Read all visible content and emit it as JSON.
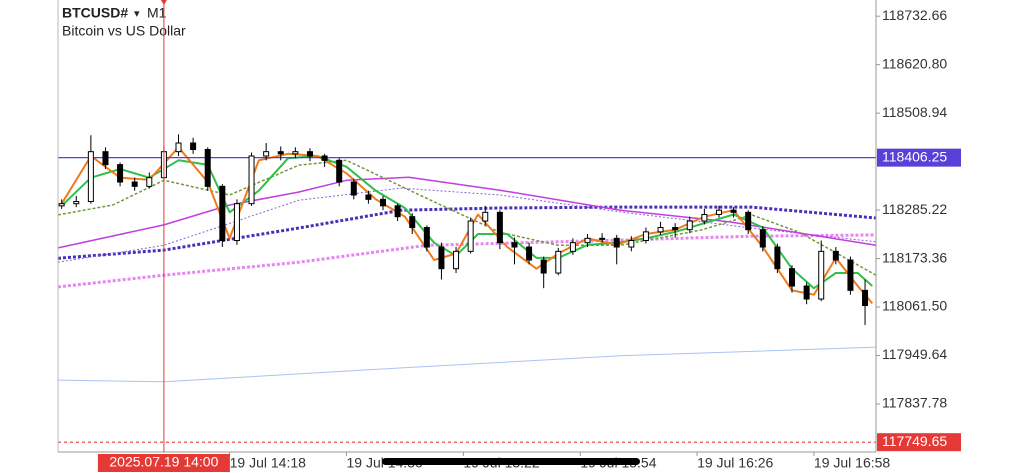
{
  "chart_data": {
    "type": "candlestick",
    "title": "BTCUSD#",
    "timeframe": "M1",
    "subtitle": "Bitcoin vs US Dollar",
    "up_color": "#ffffff",
    "down_color": "#000000",
    "x": [
      "13:32",
      "13:36",
      "13:40",
      "13:44",
      "13:48",
      "13:52",
      "13:56",
      "14:00",
      "14:04",
      "14:08",
      "14:12",
      "14:16",
      "14:20",
      "14:24",
      "14:28",
      "14:32",
      "14:36",
      "14:40",
      "14:44",
      "14:48",
      "14:52",
      "14:56",
      "15:00",
      "15:04",
      "15:08",
      "15:12",
      "15:16",
      "15:20",
      "15:24",
      "15:28",
      "15:32",
      "15:36",
      "15:40",
      "15:44",
      "15:48",
      "15:52",
      "15:56",
      "16:00",
      "16:04",
      "16:08",
      "16:12",
      "16:16",
      "16:20",
      "16:24",
      "16:28",
      "16:32",
      "16:36",
      "16:40",
      "16:44",
      "16:48",
      "16:52",
      "16:56",
      "17:00",
      "17:04",
      "17:08",
      "17:12"
    ],
    "open": [
      118295,
      118300,
      118305,
      118420,
      118390,
      118350,
      118340,
      118360,
      118420,
      118440,
      118425,
      118340,
      118215,
      118300,
      118410,
      118420,
      118415,
      118420,
      118410,
      118400,
      118350,
      118320,
      118310,
      118295,
      118270,
      118245,
      118200,
      118150,
      118190,
      118260,
      118280,
      118210,
      118200,
      118170,
      118140,
      118190,
      118210,
      118220,
      118220,
      118200,
      118215,
      118235,
      118245,
      118240,
      118260,
      118275,
      118285,
      118280,
      118240,
      118200,
      118150,
      118110,
      118080,
      118190,
      118170,
      118100
    ],
    "high": [
      118310,
      118318,
      118458,
      118430,
      118395,
      118360,
      118372,
      118432,
      118460,
      118452,
      118430,
      118345,
      118310,
      118418,
      118440,
      118432,
      118430,
      118428,
      118415,
      118405,
      118358,
      118330,
      118318,
      118300,
      118278,
      118250,
      118210,
      118200,
      118268,
      118295,
      118285,
      118222,
      118210,
      118178,
      118198,
      118220,
      118230,
      118232,
      118228,
      118225,
      118245,
      118258,
      118255,
      118270,
      118288,
      118295,
      118292,
      118285,
      118248,
      118208,
      118158,
      118118,
      118215,
      118200,
      118178,
      118125
    ],
    "low": [
      118288,
      118292,
      118300,
      118380,
      118340,
      118330,
      118335,
      118355,
      118410,
      118415,
      118330,
      118200,
      118205,
      118295,
      118400,
      118400,
      118405,
      118398,
      118385,
      118340,
      118310,
      118300,
      118285,
      118260,
      118230,
      118190,
      118125,
      118140,
      118185,
      118250,
      118195,
      118160,
      118160,
      118105,
      118135,
      118182,
      118200,
      118210,
      118160,
      118190,
      118208,
      118228,
      118222,
      118232,
      118252,
      118268,
      118268,
      118230,
      118190,
      118140,
      118095,
      118068,
      118075,
      118160,
      118090,
      118020
    ],
    "close": [
      118300,
      118305,
      118420,
      118390,
      118350,
      118340,
      118360,
      118420,
      118440,
      118425,
      118340,
      118215,
      118300,
      118410,
      118420,
      118415,
      118420,
      118410,
      118400,
      118350,
      118320,
      118310,
      118295,
      118270,
      118245,
      118200,
      118150,
      118190,
      118260,
      118280,
      118210,
      118200,
      118170,
      118140,
      118190,
      118210,
      118220,
      118220,
      118200,
      118215,
      118235,
      118245,
      118240,
      118260,
      118275,
      118285,
      118280,
      118240,
      118200,
      118150,
      118110,
      118080,
      118190,
      118170,
      118100,
      118065
    ],
    "lines": [
      {
        "color": "#a9c4f5",
        "width": 1,
        "dash": "none",
        "x": [
          "13:31",
          "14:00",
          "15:05",
          "16:05",
          "17:15"
        ],
        "values": [
          117893,
          117889,
          117921,
          117949,
          117969
        ]
      },
      {
        "color": "#e985f2",
        "width": 3,
        "dash": "3 2",
        "x": [
          "13:31",
          "14:00",
          "14:37",
          "15:12",
          "16:05",
          "16:41",
          "17:15"
        ],
        "values": [
          118108,
          118135,
          118165,
          118204,
          118216,
          118225,
          118228
        ]
      },
      {
        "color": "#4b2fb8",
        "width": 3,
        "dash": "3 2",
        "x": [
          "13:31",
          "14:00",
          "14:37",
          "15:05",
          "15:32",
          "16:05",
          "16:41",
          "17:15"
        ],
        "values": [
          118174,
          118193,
          118244,
          118285,
          118290,
          118292,
          118292,
          118267
        ]
      },
      {
        "color": "#8a63d8",
        "width": 1,
        "dash": "2 2",
        "x": [
          "13:31",
          "14:00",
          "14:37",
          "15:05",
          "15:32",
          "16:05",
          "16:41",
          "17:15"
        ],
        "values": [
          118165,
          118204,
          118308,
          118336,
          118320,
          118281,
          118244,
          118212
        ]
      },
      {
        "color": "#c23ee0",
        "width": 1.5,
        "dash": "none",
        "x": [
          "13:31",
          "14:00",
          "14:18",
          "14:37",
          "14:50",
          "15:07",
          "15:32",
          "16:05",
          "16:35",
          "17:15"
        ],
        "values": [
          118198,
          118251,
          118297,
          118327,
          118354,
          118361,
          118331,
          118285,
          118258,
          118204
        ]
      },
      {
        "color": "#6f9a3a",
        "width": 1.5,
        "dash": "3 2",
        "x": [
          "13:31",
          "13:46",
          "14:00",
          "14:18",
          "14:37",
          "14:50",
          "15:10",
          "15:32",
          "15:48",
          "16:05",
          "16:27",
          "16:41",
          "16:54",
          "17:15"
        ],
        "values": [
          118274,
          118297,
          118354,
          118320,
          118389,
          118400,
          118320,
          118234,
          118204,
          118204,
          118239,
          118274,
          118234,
          118135
        ]
      },
      {
        "color": "#2fbf4a",
        "width": 2,
        "dash": "none",
        "x": [
          "13:32",
          "13:40",
          "13:48",
          "13:56",
          "14:04",
          "14:12",
          "14:18",
          "14:26",
          "14:34",
          "14:42",
          "14:50",
          "14:58",
          "15:06",
          "15:14",
          "15:20",
          "15:26",
          "15:34",
          "15:42",
          "15:48",
          "15:56",
          "16:04",
          "16:12",
          "16:20",
          "16:28",
          "16:36",
          "16:44",
          "16:52",
          "16:58",
          "17:04",
          "17:10",
          "17:14"
        ],
        "values": [
          118295,
          118360,
          118380,
          118360,
          118400,
          118390,
          118280,
          118330,
          118405,
          118410,
          118385,
          118330,
          118290,
          118210,
          118180,
          118230,
          118230,
          118175,
          118175,
          118205,
          118210,
          118220,
          118235,
          118255,
          118275,
          118245,
          118150,
          118105,
          118140,
          118140,
          118110
        ]
      },
      {
        "color": "#f07a1c",
        "width": 2,
        "dash": "none",
        "x": [
          "13:32",
          "13:40",
          "13:48",
          "13:56",
          "14:04",
          "14:12",
          "14:18",
          "14:26",
          "14:34",
          "14:42",
          "14:50",
          "14:58",
          "15:06",
          "15:14",
          "15:20",
          "15:26",
          "15:34",
          "15:42",
          "15:48",
          "15:56",
          "16:04",
          "16:12",
          "16:20",
          "16:28",
          "16:36",
          "16:44",
          "16:52",
          "16:58",
          "17:04",
          "17:10",
          "17:14"
        ],
        "values": [
          118300,
          118410,
          118360,
          118355,
          118430,
          118350,
          118220,
          118400,
          118415,
          118410,
          118370,
          118310,
          118270,
          118170,
          118185,
          118275,
          118200,
          118150,
          118185,
          118220,
          118205,
          118230,
          118240,
          118270,
          118285,
          118200,
          118100,
          118090,
          118175,
          118110,
          118070
        ]
      }
    ],
    "hlines": [
      {
        "value": 118406.25,
        "color": "#5b3fd9"
      },
      {
        "value": 117749.65,
        "color": "#e53935"
      }
    ],
    "vline": {
      "x": "14:00",
      "label": "2025.07.19 14:00",
      "color": "#e53935"
    },
    "xlim": [
      "13:31",
      "17:15"
    ],
    "xticks": [
      {
        "value": "14:18",
        "label": "19 Jul 14:18"
      },
      {
        "value": "14:50",
        "label": "19 Jul 14:50"
      },
      {
        "value": "15:22",
        "label": "19 Jul 15:22"
      },
      {
        "value": "15:54",
        "label": "19 Jul 15:54"
      },
      {
        "value": "16:26",
        "label": "19 Jul 16:26"
      },
      {
        "value": "16:58",
        "label": "19 Jul 16:58"
      }
    ],
    "ylim": [
      117727,
      118770
    ],
    "yticks": [
      118732.66,
      {
        "value": 118620.8,
        "label": "118620.80"
      },
      118508.94,
      118285.22,
      118173.36,
      {
        "value": 118061.5,
        "label": "118061.50"
      },
      117949.64,
      117837.78
    ]
  }
}
